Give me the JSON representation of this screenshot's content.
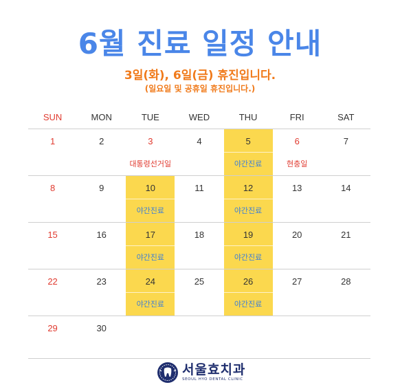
{
  "title": "6월 진료 일정 안내",
  "subtitle": "3일(화), 6일(금) 휴진입니다.",
  "note": "(일요일 및 공휴일 휴진입니다.)",
  "weekdays": [
    "SUN",
    "MON",
    "TUE",
    "WED",
    "THU",
    "FRI",
    "SAT"
  ],
  "weeks": [
    [
      {
        "d": ""
      },
      {
        "d": "1",
        "sun": true
      },
      {
        "d": "2"
      },
      {
        "d": "3",
        "hol": true,
        "label": "대통령선거일",
        "lc": "red"
      },
      {
        "d": "4"
      },
      {
        "d": "5",
        "hl": true,
        "label": "야간진료",
        "lc": "blue"
      },
      {
        "d": "6",
        "hol": true,
        "label": "현충일",
        "lc": "red"
      },
      {
        "d": "7"
      }
    ],
    [
      {
        "d": ""
      },
      {
        "d": "8",
        "sun": true
      },
      {
        "d": "9"
      },
      {
        "d": "10",
        "hl": true,
        "label": "야간진료",
        "lc": "blue"
      },
      {
        "d": "11"
      },
      {
        "d": "12",
        "hl": true,
        "label": "야간진료",
        "lc": "blue"
      },
      {
        "d": "13"
      },
      {
        "d": "14"
      }
    ],
    [
      {
        "d": ""
      },
      {
        "d": "15",
        "sun": true
      },
      {
        "d": "16"
      },
      {
        "d": "17",
        "hl": true,
        "label": "야간진료",
        "lc": "blue"
      },
      {
        "d": "18"
      },
      {
        "d": "19",
        "hl": true,
        "label": "야간진료",
        "lc": "blue"
      },
      {
        "d": "20"
      },
      {
        "d": "21"
      }
    ],
    [
      {
        "d": ""
      },
      {
        "d": "22",
        "sun": true
      },
      {
        "d": "23"
      },
      {
        "d": "24",
        "hl": true,
        "label": "야간진료",
        "lc": "blue"
      },
      {
        "d": "25"
      },
      {
        "d": "26",
        "hl": true,
        "label": "야간진료",
        "lc": "blue"
      },
      {
        "d": "27"
      },
      {
        "d": "28"
      }
    ],
    [
      {
        "d": ""
      },
      {
        "d": "29",
        "sun": true
      },
      {
        "d": "30"
      },
      {
        "d": ""
      },
      {
        "d": ""
      },
      {
        "d": ""
      },
      {
        "d": ""
      },
      {
        "d": ""
      }
    ]
  ],
  "logo": {
    "name_ko": "서울효치과",
    "name_en": "SEOUL HYO DENTAL CLINIC"
  },
  "colors": {
    "title": "#4a86e8",
    "accent": "#f07a1a",
    "highlight": "#fbd84e",
    "holiday": "#e03a2f",
    "night_label": "#3d7fd6"
  }
}
